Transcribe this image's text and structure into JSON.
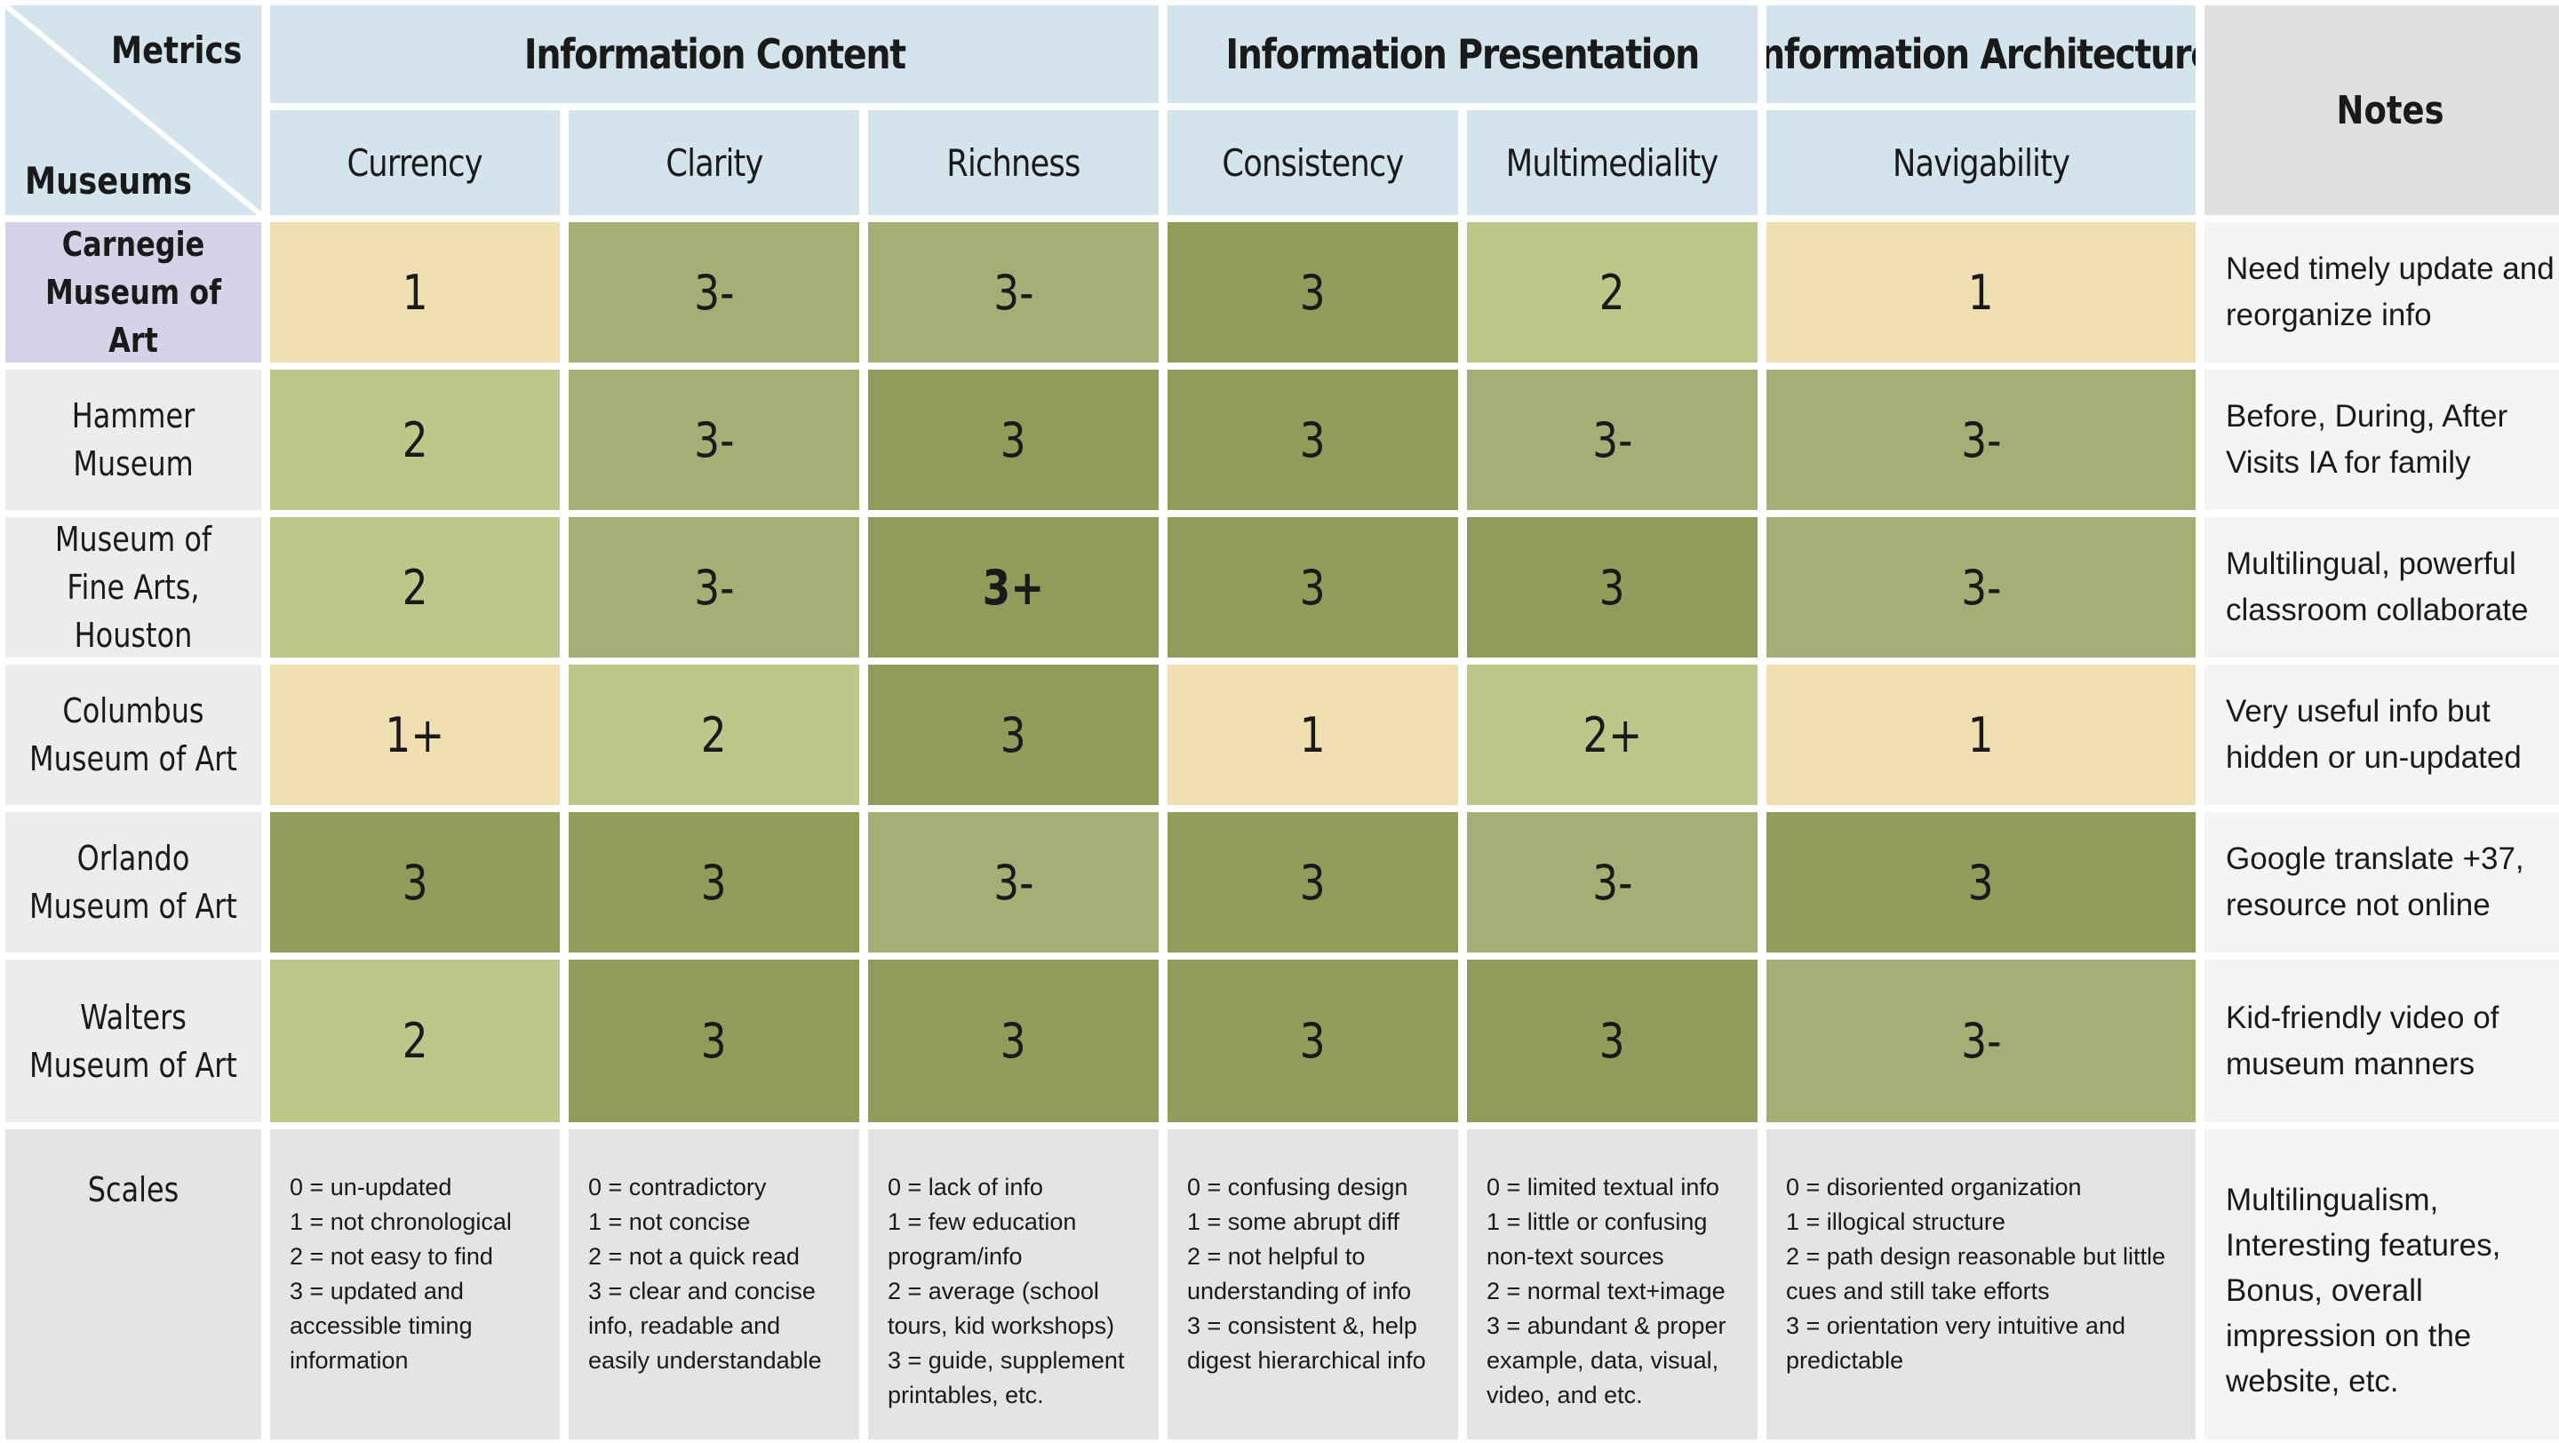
{
  "corner": {
    "top_label": "Metrics",
    "bottom_label": "Museums"
  },
  "categories": [
    {
      "label": "Information Content"
    },
    {
      "label": "Information Presentation"
    },
    {
      "label": "Information Architecture"
    }
  ],
  "notes_header": "Notes",
  "metrics": [
    "Currency",
    "Clarity",
    "Richness",
    "Consistency",
    "Multimediality",
    "Navigability"
  ],
  "score_colors": {
    "1": "#efdfb2",
    "1+": "#efdfb2",
    "2": "#bcc78a",
    "2+": "#bcc78a",
    "3-": "#a4af76",
    "3": "#8f9c5a",
    "3+": "#8f9c5a"
  },
  "rows": [
    {
      "museum": "Carnegie Museum of Art",
      "highlight": true,
      "scores": [
        "1",
        "3-",
        "3-",
        "3",
        "2",
        "1"
      ],
      "note": "Need timely update and reorganize info"
    },
    {
      "museum": "Hammer Museum",
      "highlight": false,
      "scores": [
        "2",
        "3-",
        "3",
        "3",
        "3-",
        "3-"
      ],
      "note": "Before, During, After Visits IA for family"
    },
    {
      "museum": "Museum of Fine Arts, Houston",
      "highlight": false,
      "scores": [
        "2",
        "3-",
        "3+",
        "3",
        "3",
        "3-"
      ],
      "note": "Multilingual, powerful classroom collaborate"
    },
    {
      "museum": "Columbus Museum of Art",
      "highlight": false,
      "scores": [
        "1+",
        "2",
        "3",
        "1",
        "2+",
        "1"
      ],
      "note": "Very useful info but hidden or un-updated"
    },
    {
      "museum": "Orlando Museum of Art",
      "highlight": false,
      "scores": [
        "3",
        "3",
        "3-",
        "3",
        "3-",
        "3"
      ],
      "note": "Google translate +37, resource not online"
    },
    {
      "museum": "Walters Museum of Art",
      "highlight": false,
      "scores": [
        "2",
        "3",
        "3",
        "3",
        "3",
        "3-"
      ],
      "note": "Kid-friendly video of museum manners"
    }
  ],
  "scales": {
    "label": "Scales",
    "items": [
      "0 = un-updated\n1 = not chronological\n2 = not easy to find\n3 = updated and accessible timing information",
      "0 = contradictory\n1 = not concise\n2 = not a quick read\n3 = clear and concise info, readable and easily understandable",
      "0 = lack of info\n1 = few education program/info\n2 = average (school tours, kid workshops)\n3 = guide, supplement printables, etc.",
      "0 = confusing design\n1 = some abrupt diff\n2 = not helpful to understanding of info\n3 = consistent &, help digest hierarchical info",
      "0 = limited textual info\n1 = little or confusing non-text sources\n2 = normal text+image\n3 = abundant & proper example, data, visual, video, and etc.",
      "0 = disoriented organization\n1 = illogical structure\n2 = path design reasonable but little cues and still take efforts\n3 = orientation very intuitive and predictable"
    ],
    "note": "Multilingualism, Interesting features, Bonus, overall impression on the website, etc."
  }
}
